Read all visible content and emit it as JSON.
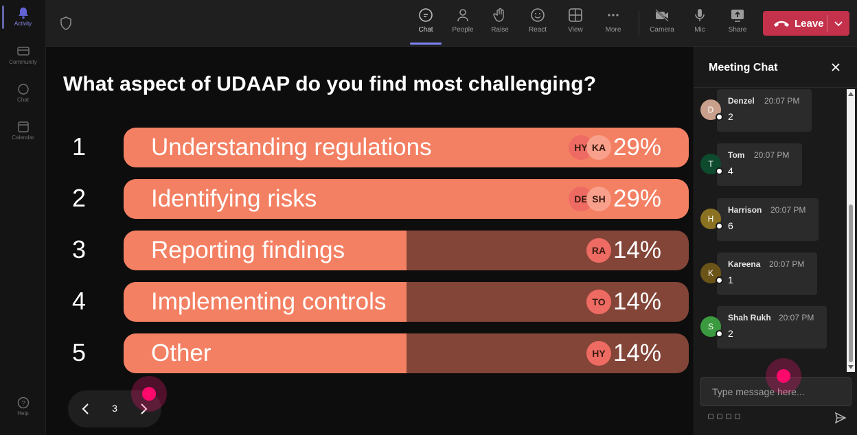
{
  "rail": {
    "items": [
      {
        "label": "Activity",
        "icon": "bell-icon"
      },
      {
        "label": "Community",
        "icon": "community-icon"
      },
      {
        "label": "Chat",
        "icon": "chat-icon"
      },
      {
        "label": "Calendar",
        "icon": "calendar-icon"
      },
      {
        "label": "Help",
        "icon": "help-icon"
      }
    ]
  },
  "toolbar": {
    "tools": [
      {
        "label": "Chat",
        "icon": "chat-icon"
      },
      {
        "label": "People",
        "icon": "people-icon"
      },
      {
        "label": "Raise",
        "icon": "raise-hand-icon"
      },
      {
        "label": "React",
        "icon": "react-icon"
      },
      {
        "label": "View",
        "icon": "view-icon"
      },
      {
        "label": "More",
        "icon": "more-icon"
      },
      {
        "label": "Camera",
        "icon": "camera-off-icon"
      },
      {
        "label": "Mic",
        "icon": "mic-icon"
      },
      {
        "label": "Share",
        "icon": "share-icon"
      }
    ],
    "leave_label": "Leave",
    "leave_color": "#c4314b"
  },
  "poll": {
    "question": "What aspect of UDAAP do you find most challenging?",
    "options": [
      {
        "number": "1",
        "label": "Understanding regulations",
        "percent": "29%",
        "fraction": 1.0,
        "avatars": [
          "HY",
          "KA"
        ]
      },
      {
        "number": "2",
        "label": "Identifying risks",
        "percent": "29%",
        "fraction": 1.0,
        "avatars": [
          "DE",
          "SH"
        ]
      },
      {
        "number": "3",
        "label": "Reporting findings",
        "percent": "14%",
        "fraction": 0.5,
        "avatars": [
          "RA"
        ]
      },
      {
        "number": "4",
        "label": "Implementing controls",
        "percent": "14%",
        "fraction": 0.5,
        "avatars": [
          "TO"
        ]
      },
      {
        "number": "5",
        "label": "Other",
        "percent": "14%",
        "fraction": 0.5,
        "avatars": [
          "HY"
        ]
      }
    ],
    "fill_color": "#f48063",
    "track_color": "#834538"
  },
  "pager": {
    "current": "3"
  },
  "chat": {
    "title": "Meeting Chat",
    "messages": [
      {
        "initial": "D",
        "name": "Denzel",
        "time": "20:07 PM",
        "text": "2",
        "color": "#c9a08c"
      },
      {
        "initial": "T",
        "name": "Tom",
        "time": "20:07 PM",
        "text": "4",
        "color": "#0d4a2e"
      },
      {
        "initial": "H",
        "name": "Harrison",
        "time": "20:07 PM",
        "text": "6",
        "color": "#8a7222"
      },
      {
        "initial": "K",
        "name": "Kareena",
        "time": "20:07 PM",
        "text": "1",
        "color": "#6b5418"
      },
      {
        "initial": "S",
        "name": "Shah Rukh",
        "time": "20:07 PM",
        "text": "2",
        "color": "#3b9a3f"
      }
    ],
    "compose_placeholder": "Type message here..."
  }
}
